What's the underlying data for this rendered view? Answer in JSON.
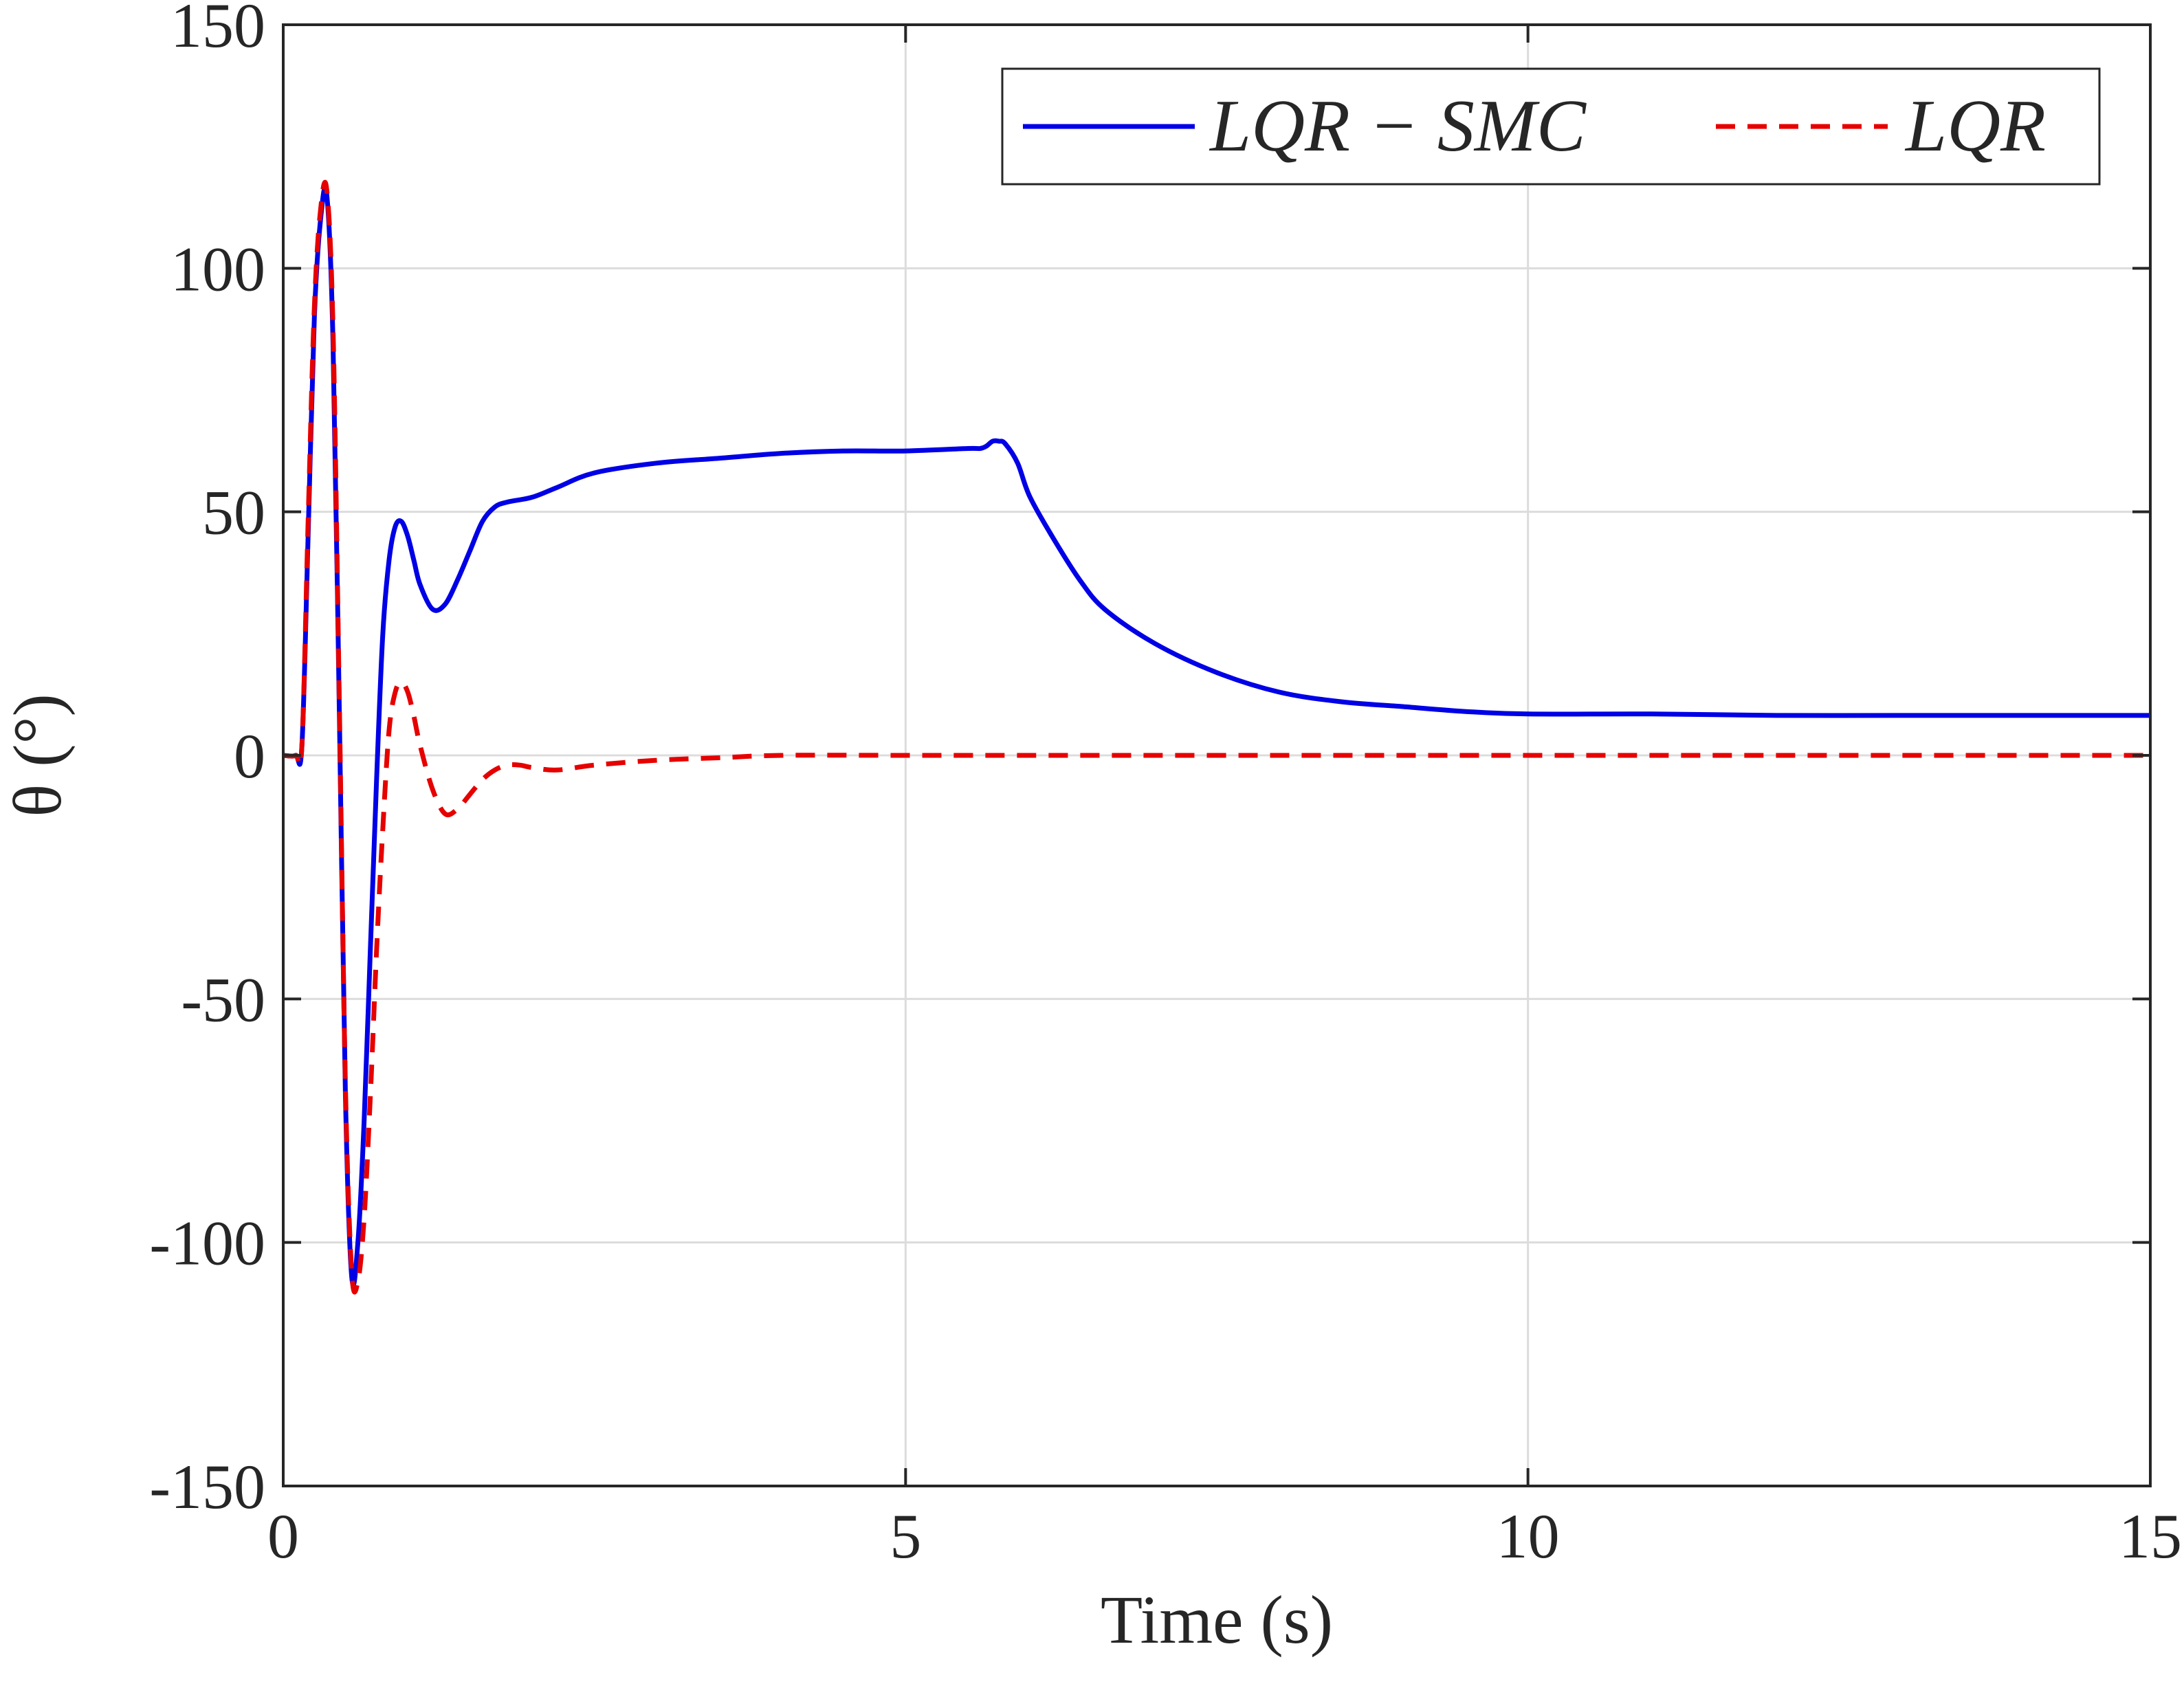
{
  "chart_data": {
    "type": "line",
    "title": "",
    "xlabel": "Time (s)",
    "ylabel": "θ (°)",
    "xlim": [
      0,
      15
    ],
    "ylim": [
      -150,
      150
    ],
    "xticks": [
      0,
      5,
      10,
      15
    ],
    "yticks": [
      -150,
      -100,
      -50,
      0,
      50,
      100,
      150
    ],
    "xtick_labels": [
      "0",
      "5",
      "10",
      "15"
    ],
    "ytick_labels": [
      "-150",
      "-100",
      "-50",
      "0",
      "50",
      "100",
      "150"
    ],
    "grid": true,
    "legend": {
      "placement": "top-right",
      "orientation": "horizontal"
    },
    "series": [
      {
        "name": "LQR − SMC",
        "color": "#0000e6",
        "style": "solid",
        "x": [
          0,
          0.1,
          0.15,
          0.2,
          0.25,
          0.3,
          0.35,
          0.4,
          0.45,
          0.5,
          0.55,
          0.6,
          0.65,
          0.7,
          0.75,
          0.8,
          0.85,
          0.9,
          0.95,
          1.0,
          1.05,
          1.1,
          1.2,
          1.3,
          1.4,
          1.5,
          1.6,
          1.7,
          1.8,
          2.0,
          2.2,
          2.5,
          3.0,
          3.5,
          4.0,
          4.5,
          5.0,
          5.5,
          5.6,
          5.65,
          5.7,
          5.75,
          5.8,
          5.9,
          6.0,
          6.2,
          6.4,
          6.6,
          7.0,
          7.5,
          8.0,
          8.5,
          9.0,
          9.5,
          10.0,
          11.0,
          12.0,
          13.0,
          14.0,
          15.0
        ],
        "y": [
          0,
          0,
          2,
          45,
          90,
          110,
          115,
          85,
          10,
          -70,
          -107,
          -100,
          -75,
          -40,
          -5,
          25,
          40,
          47,
          48,
          45,
          40,
          35,
          30,
          31,
          36,
          42,
          48,
          51,
          52,
          53,
          55,
          58,
          60,
          61,
          62,
          62.5,
          62.5,
          63,
          63,
          63.5,
          64.5,
          64.5,
          64,
          60,
          53,
          44,
          36,
          30,
          23,
          17,
          13,
          11,
          10,
          9,
          8.5,
          8.5,
          8.2,
          8.2,
          8.2,
          8.2
        ]
      },
      {
        "name": "LQR",
        "color": "#e60000",
        "style": "dashed",
        "x": [
          0,
          0.1,
          0.15,
          0.2,
          0.25,
          0.3,
          0.35,
          0.4,
          0.45,
          0.5,
          0.55,
          0.6,
          0.65,
          0.7,
          0.75,
          0.8,
          0.85,
          0.9,
          0.95,
          1.0,
          1.05,
          1.1,
          1.2,
          1.3,
          1.4,
          1.5,
          1.6,
          1.7,
          1.8,
          1.9,
          2.0,
          2.2,
          2.5,
          3.0,
          3.5,
          4.0,
          5.0,
          6.0,
          8.0,
          10.0,
          12.0,
          15.0
        ],
        "y": [
          0,
          0,
          2,
          48,
          92,
          112,
          116,
          88,
          12,
          -68,
          -106,
          -108,
          -95,
          -70,
          -40,
          -15,
          5,
          13,
          15,
          13,
          8,
          2,
          -7,
          -12,
          -11,
          -8,
          -5,
          -3,
          -2,
          -2,
          -2.5,
          -3,
          -2,
          -1,
          -0.5,
          0,
          0,
          0,
          0,
          0,
          0,
          0
        ]
      }
    ]
  }
}
